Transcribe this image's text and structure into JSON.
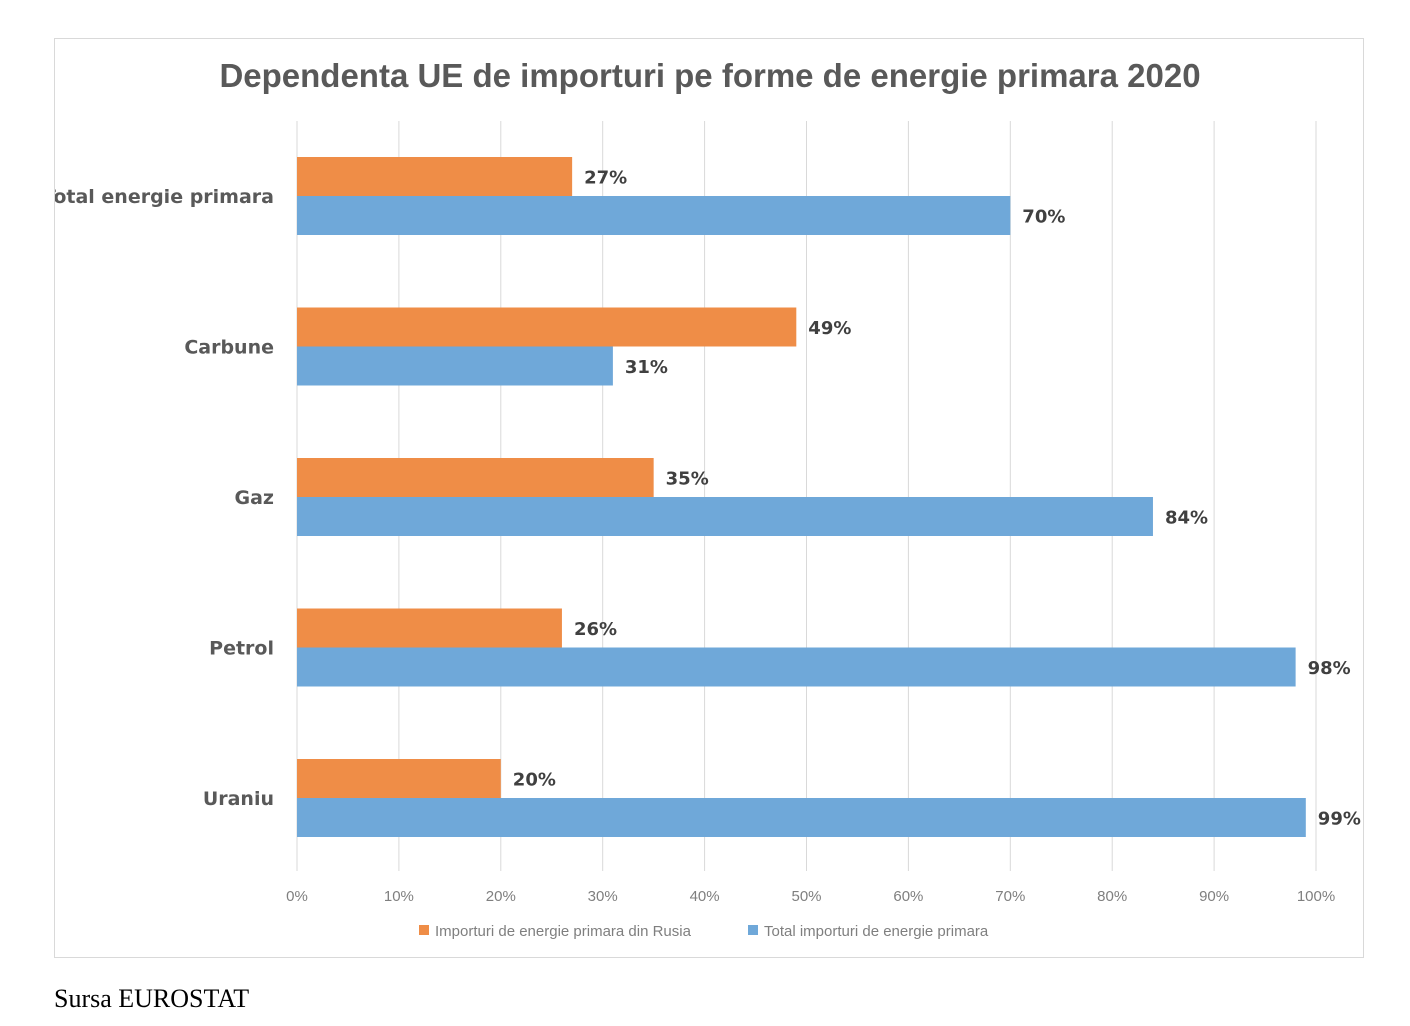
{
  "chart_data": {
    "type": "bar",
    "orientation": "horizontal",
    "title": "Dependenta UE de importuri pe forme de energie primara 2020",
    "categories": [
      "Total energie primara",
      "Carbune",
      "Gaz",
      "Petrol",
      "Uraniu"
    ],
    "series": [
      {
        "name": "Importuri de energie primara din Rusia",
        "values": [
          27,
          49,
          35,
          26,
          20
        ],
        "color": "#ef8d47"
      },
      {
        "name": "Total importuri de energie primara",
        "values": [
          70,
          31,
          84,
          98,
          99
        ],
        "color": "#6fa8d9"
      }
    ],
    "data_labels": {
      "Importuri de energie primara din Rusia": [
        "27%",
        "49%",
        "35%",
        "26%",
        "20%"
      ],
      "Total importuri de energie primara": [
        "70%",
        "31%",
        "84%",
        "98%",
        "99%"
      ]
    },
    "xlim": [
      0,
      100
    ],
    "x_ticks": [
      "0%",
      "10%",
      "20%",
      "30%",
      "40%",
      "50%",
      "60%",
      "70%",
      "80%",
      "90%",
      "100%"
    ],
    "grid": true,
    "legend_position": "bottom",
    "colors": {
      "title": "#595959",
      "category_text": "#595959",
      "data_label": "#404040",
      "tick_text": "#7f7f7f",
      "gridline": "#d9d9d9"
    }
  },
  "source": "Sursa EUROSTAT"
}
